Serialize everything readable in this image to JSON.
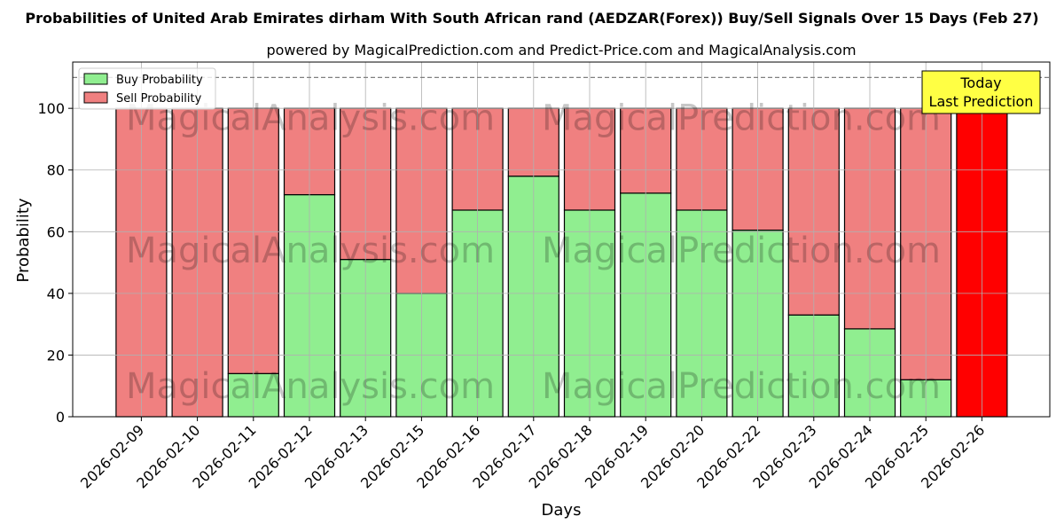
{
  "chart_data": {
    "type": "bar",
    "title": "Probabilities of United Arab Emirates dirham With South African rand (AEDZAR(Forex)) Buy/Sell Signals Over 15 Days (Feb 27)",
    "subtitle": "powered by MagicalPrediction.com and Predict-Price.com and MagicalAnalysis.com",
    "xlabel": "Days",
    "ylabel": "Probability",
    "ylim": [
      0,
      115
    ],
    "yticks": [
      0,
      20,
      40,
      60,
      80,
      100
    ],
    "reference_line": 110,
    "grid": true,
    "legend_position": "top-left",
    "categories": [
      "2026-02-09",
      "2026-02-10",
      "2026-02-11",
      "2026-02-12",
      "2026-02-13",
      "2026-02-15",
      "2026-02-16",
      "2026-02-17",
      "2026-02-18",
      "2026-02-19",
      "2026-02-20",
      "2026-02-22",
      "2026-02-23",
      "2026-02-24",
      "2026-02-25",
      "2026-02-26"
    ],
    "series": [
      {
        "name": "Buy Probability",
        "color": "#90ee90",
        "values": [
          0,
          0,
          14,
          72,
          51,
          40,
          67,
          78,
          67,
          72.5,
          67,
          60.5,
          33,
          28.5,
          12,
          0
        ]
      },
      {
        "name": "Sell Probability",
        "color": "#f08080",
        "values": [
          100,
          100,
          86,
          28,
          49,
          60,
          33,
          22,
          33,
          27.5,
          33,
          39.5,
          67,
          71.5,
          88,
          100
        ]
      }
    ],
    "highlight": {
      "index": 15,
      "color": "#ff0000"
    },
    "annotation": {
      "lines": [
        "Today",
        "Last Prediction"
      ],
      "background": "#ffff44"
    },
    "watermark": "MagicalAnalysis.com    MagicalPrediction.com"
  }
}
